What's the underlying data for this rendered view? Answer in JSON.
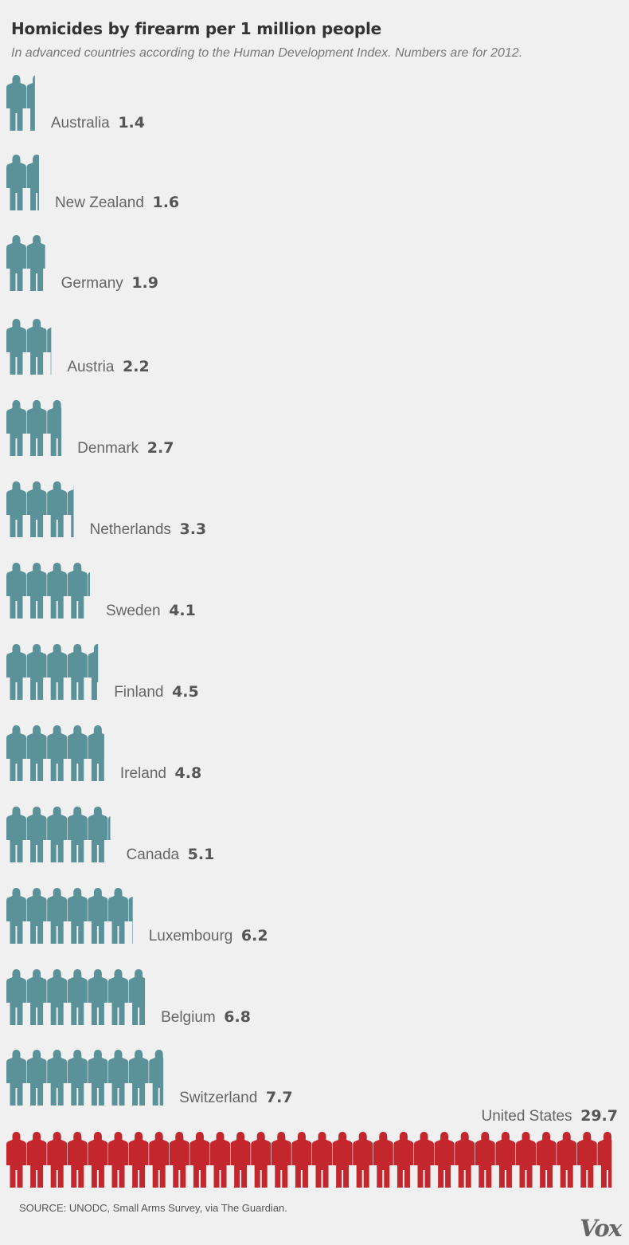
{
  "header": {
    "title": "Homicides by firearm per 1 million people",
    "subtitle": "In advanced countries according to the Human Development Index. Numbers are for 2012."
  },
  "footer": {
    "source": "SOURCE: UNODC, Small Arms Survey, via The Guardian.",
    "logo": "Vox"
  },
  "colors": {
    "figure": "#5b9198",
    "highlight": "#c3262d",
    "label": "#666666",
    "value": "#555555"
  },
  "icon": "person-icon",
  "chart_data": {
    "type": "bar",
    "unit_per_icon": 1,
    "categories": [
      "Australia",
      "New Zealand",
      "Germany",
      "Austria",
      "Denmark",
      "Netherlands",
      "Sweden",
      "Finland",
      "Ireland",
      "Canada",
      "Luxembourg",
      "Belgium",
      "Switzerland",
      "United States"
    ],
    "values": [
      1.4,
      1.6,
      1.9,
      2.2,
      2.7,
      3.3,
      4.1,
      4.5,
      4.8,
      5.1,
      6.2,
      6.8,
      7.7,
      29.7
    ],
    "value_labels": [
      "1.4",
      "1.6",
      "1.9",
      "2.2",
      "2.7",
      "3.3",
      "4.1",
      "4.5",
      "4.8",
      "5.1",
      "6.2",
      "6.8",
      "7.7",
      "29.7"
    ],
    "highlight": "United States",
    "title": "Homicides by firearm per 1 million people",
    "xlabel": "",
    "ylabel": ""
  }
}
